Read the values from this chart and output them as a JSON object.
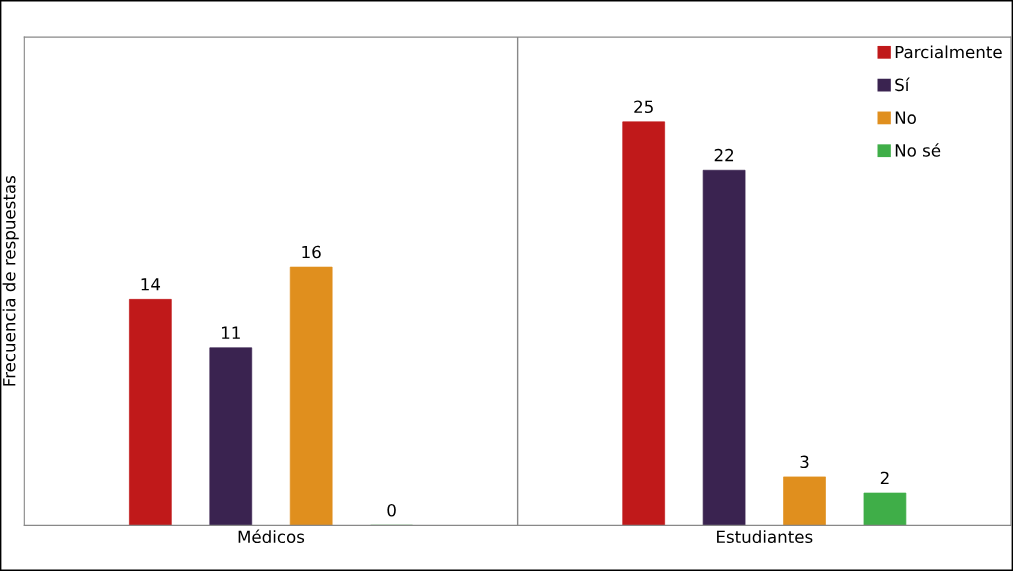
{
  "chart_data": {
    "type": "bar",
    "ylabel": "Frecuencia de respuestas",
    "categories": [
      "Médicos",
      "Estudiantes"
    ],
    "series": [
      {
        "name": "Parcialmente",
        "color": "#c0191a",
        "values": [
          14,
          25
        ]
      },
      {
        "name": "Sí",
        "color": "#3a2350",
        "values": [
          11,
          22
        ]
      },
      {
        "name": "No",
        "color": "#e08f1e",
        "values": [
          16,
          3
        ]
      },
      {
        "name": "No sé",
        "color": "#3fae48",
        "values": [
          0,
          2
        ]
      }
    ],
    "data_labels": true,
    "grid": "x",
    "legend": "top right",
    "tick_labels": "x"
  }
}
